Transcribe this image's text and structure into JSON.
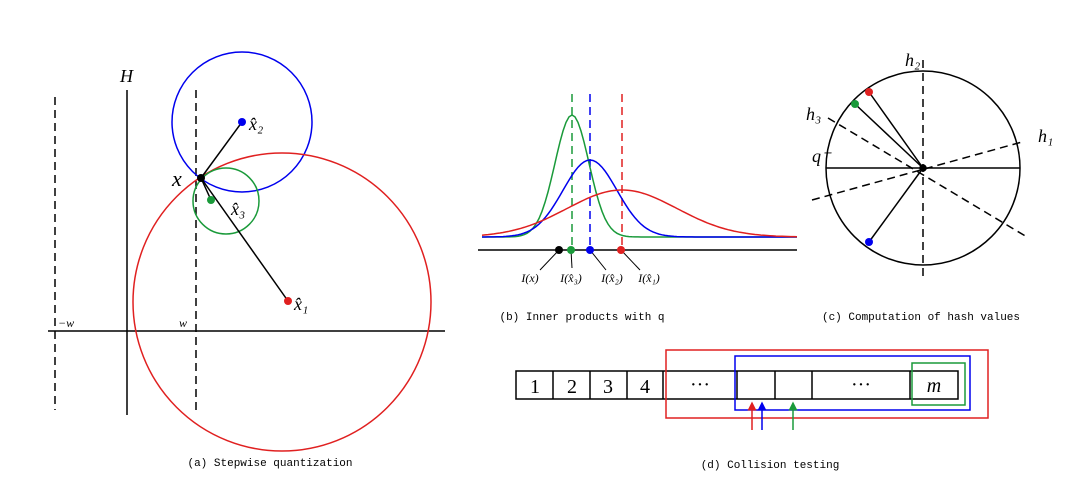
{
  "panel_a": {
    "labels": {
      "h_axis": "H",
      "neg_w": "−w",
      "w": "w",
      "x": "x",
      "x2": "x̂₂",
      "x3": "x̂₃",
      "x1": "x̂₁"
    },
    "caption": "(a)  Stepwise quantization"
  },
  "panel_b": {
    "labels": [
      "I(x)",
      "I(x̂₃)",
      "I(x̂₂)",
      "I(x̂₁)"
    ],
    "caption": "(b)  Inner products with q"
  },
  "panel_c": {
    "labels": {
      "h2": "h₂",
      "h3": "h₃",
      "h1": "h₁",
      "q": "q⁻"
    },
    "caption": "(c)  Computation of hash values"
  },
  "panel_d": {
    "cells": [
      "1",
      "2",
      "3",
      "4",
      "···",
      "···",
      "m"
    ],
    "caption": "(d)  Collision testing"
  }
}
